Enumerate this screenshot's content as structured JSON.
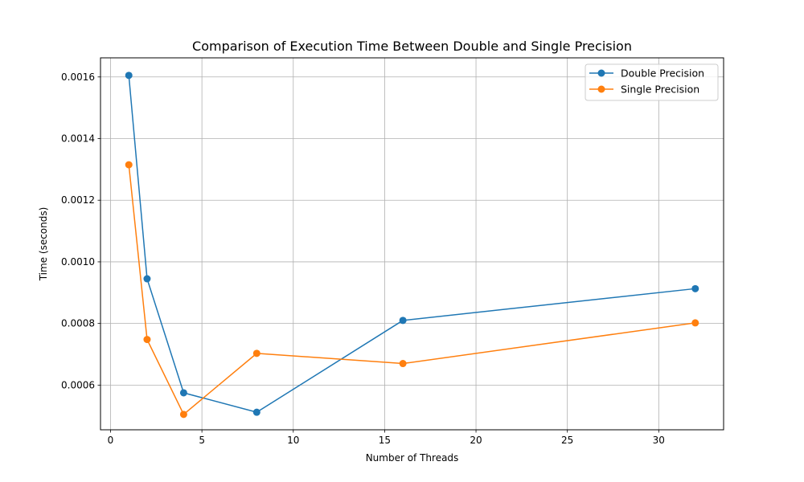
{
  "chart_data": {
    "type": "line",
    "title": "Comparison of Execution Time Between Double and Single Precision",
    "xlabel": "Number of Threads",
    "ylabel": "Time (seconds)",
    "xlim": [
      -0.55,
      33.55
    ],
    "ylim": [
      0.000455,
      0.001662
    ],
    "xticks": [
      0,
      5,
      10,
      15,
      20,
      25,
      30
    ],
    "xtick_labels": [
      "0",
      "5",
      "10",
      "15",
      "20",
      "25",
      "30"
    ],
    "yticks": [
      0.0006,
      0.0008,
      0.001,
      0.0012,
      0.0014,
      0.0016
    ],
    "ytick_labels": [
      "0.0006",
      "0.0008",
      "0.0010",
      "0.0012",
      "0.0014",
      "0.0016"
    ],
    "grid": true,
    "legend_position": "top-right",
    "x": [
      1,
      2,
      4,
      8,
      16,
      32
    ],
    "series": [
      {
        "name": "Double Precision",
        "color": "#1f77b4",
        "marker": "circle",
        "values": [
          0.001605,
          0.000945,
          0.000575,
          0.000512,
          0.00081,
          0.000913
        ]
      },
      {
        "name": "Single Precision",
        "color": "#ff7f0e",
        "marker": "circle",
        "values": [
          0.001315,
          0.000748,
          0.000505,
          0.000703,
          0.00067,
          0.000802
        ]
      }
    ]
  }
}
